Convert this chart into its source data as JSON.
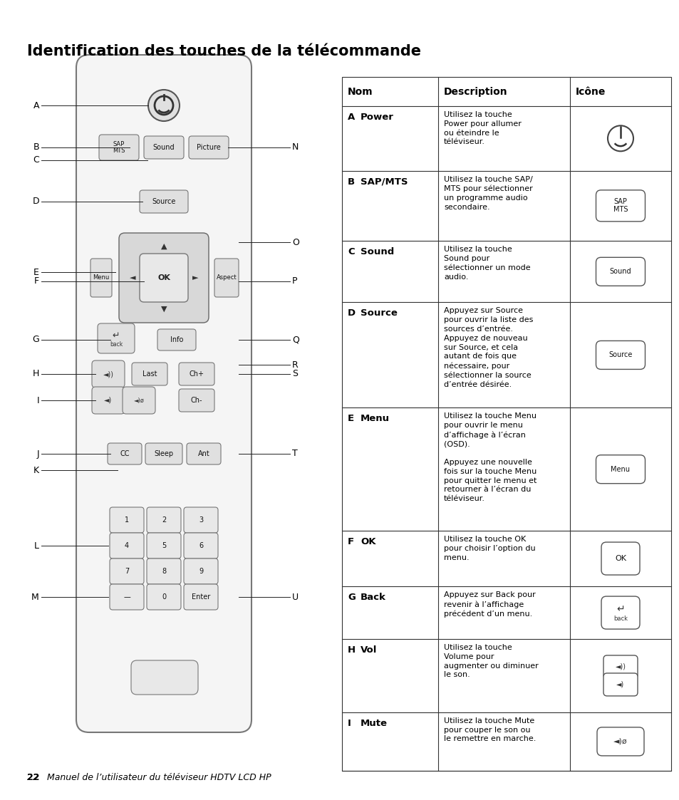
{
  "title": "Identification des touches de la télécommande",
  "bg_color": "#ffffff",
  "text_color": "#000000",
  "footer_bold": "22",
  "footer_italic": "   Manuel de l’utilisateur du téléviseur HDTV LCD HP",
  "table_headers": [
    "Nom",
    "Description",
    "Icône"
  ],
  "table_rows": [
    {
      "letter": "A",
      "name": "Power",
      "description": "Utilisez la touche\nPower pour allumer\nou éteindre le\ntéléviseur.",
      "icon_type": "power"
    },
    {
      "letter": "B",
      "name": "SAP/MTS",
      "description": "Utilisez la touche SAP/\nMTS pour sélectionner\nun programme audio\nsecondaire.",
      "icon_type": "sap_mts"
    },
    {
      "letter": "C",
      "name": "Sound",
      "description": "Utilisez la touche\nSound pour\nsélectionner un mode\naudio.",
      "icon_type": "sound"
    },
    {
      "letter": "D",
      "name": "Source",
      "description": "Appuyez sur Source\npour ouvrir la liste des\nsources d’entrée.\nAppuyez de nouveau\nsur Source, et cela\nautant de fois que\nnécessaire, pour\nsélectionner la source\nd’entrée désirée.",
      "icon_type": "source"
    },
    {
      "letter": "E",
      "name": "Menu",
      "description": "Utilisez la touche Menu\npour ouvrir le menu\nd’affichage à l’écran\n(OSD).\n\nAppuyez une nouvelle\nfois sur la touche Menu\npour quitter le menu et\nretourner à l’écran du\ntéléviseur.",
      "icon_type": "menu"
    },
    {
      "letter": "F",
      "name": "OK",
      "description": "Utilisez la touche OK\npour choisir l’option du\nmenu.",
      "icon_type": "ok"
    },
    {
      "letter": "G",
      "name": "Back",
      "description": "Appuyez sur Back pour\nrevenir à l’affichage\nprécédent d’un menu.",
      "icon_type": "back"
    },
    {
      "letter": "H",
      "name": "Vol",
      "description": "Utilisez la touche\nVolume pour\naugmenter ou diminuer\nle son.",
      "icon_type": "vol"
    },
    {
      "letter": "I",
      "name": "Mute",
      "description": "Utilisez la touche Mute\npour couper le son ou\nle remettre en marche.",
      "icon_type": "mute"
    }
  ]
}
